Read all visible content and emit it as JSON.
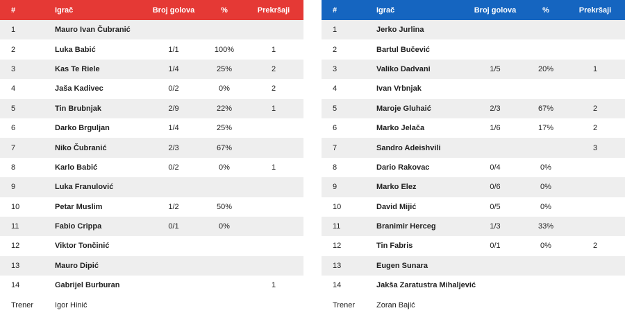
{
  "headers": {
    "num": "#",
    "player": "Igrač",
    "goals": "Broj golova",
    "pct": "%",
    "fouls": "Prekršaji"
  },
  "colors": {
    "home_header": "#e53935",
    "away_header": "#1565c0",
    "row_shade": "#eeeeee"
  },
  "home": {
    "players": [
      {
        "num": "1",
        "name": "Mauro Ivan Čubranić",
        "goals": "",
        "pct": "",
        "fouls": ""
      },
      {
        "num": "2",
        "name": "Luka Babić",
        "goals": "1/1",
        "pct": "100%",
        "fouls": "1"
      },
      {
        "num": "3",
        "name": "Kas Te Riele",
        "goals": "1/4",
        "pct": "25%",
        "fouls": "2"
      },
      {
        "num": "4",
        "name": "Jaša Kadivec",
        "goals": "0/2",
        "pct": "0%",
        "fouls": "2"
      },
      {
        "num": "5",
        "name": "Tin Brubnjak",
        "goals": "2/9",
        "pct": "22%",
        "fouls": "1"
      },
      {
        "num": "6",
        "name": "Darko Brguljan",
        "goals": "1/4",
        "pct": "25%",
        "fouls": ""
      },
      {
        "num": "7",
        "name": "Niko Čubranić",
        "goals": "2/3",
        "pct": "67%",
        "fouls": ""
      },
      {
        "num": "8",
        "name": "Karlo Babić",
        "goals": "0/2",
        "pct": "0%",
        "fouls": "1"
      },
      {
        "num": "9",
        "name": "Luka Franulović",
        "goals": "",
        "pct": "",
        "fouls": ""
      },
      {
        "num": "10",
        "name": "Petar Muslim",
        "goals": "1/2",
        "pct": "50%",
        "fouls": ""
      },
      {
        "num": "11",
        "name": "Fabio Crippa",
        "goals": "0/1",
        "pct": "0%",
        "fouls": ""
      },
      {
        "num": "12",
        "name": "Viktor Tončinić",
        "goals": "",
        "pct": "",
        "fouls": ""
      },
      {
        "num": "13",
        "name": "Mauro Dipić",
        "goals": "",
        "pct": "",
        "fouls": ""
      },
      {
        "num": "14",
        "name": "Gabrijel Burburan",
        "goals": "",
        "pct": "",
        "fouls": "1"
      }
    ],
    "coach_label": "Trener",
    "coach": "Igor Hinić"
  },
  "away": {
    "players": [
      {
        "num": "1",
        "name": "Jerko Jurlina",
        "goals": "",
        "pct": "",
        "fouls": ""
      },
      {
        "num": "2",
        "name": "Bartul Bučević",
        "goals": "",
        "pct": "",
        "fouls": ""
      },
      {
        "num": "3",
        "name": "Valiko Dadvani",
        "goals": "1/5",
        "pct": "20%",
        "fouls": "1"
      },
      {
        "num": "4",
        "name": "Ivan Vrbnjak",
        "goals": "",
        "pct": "",
        "fouls": ""
      },
      {
        "num": "5",
        "name": "Maroje Gluhaić",
        "goals": "2/3",
        "pct": "67%",
        "fouls": "2"
      },
      {
        "num": "6",
        "name": "Marko Jelača",
        "goals": "1/6",
        "pct": "17%",
        "fouls": "2"
      },
      {
        "num": "7",
        "name": "Sandro Adeishvili",
        "goals": "",
        "pct": "",
        "fouls": "3"
      },
      {
        "num": "8",
        "name": "Dario Rakovac",
        "goals": "0/4",
        "pct": "0%",
        "fouls": ""
      },
      {
        "num": "9",
        "name": "Marko Elez",
        "goals": "0/6",
        "pct": "0%",
        "fouls": ""
      },
      {
        "num": "10",
        "name": "David Mijić",
        "goals": "0/5",
        "pct": "0%",
        "fouls": ""
      },
      {
        "num": "11",
        "name": "Branimir Herceg",
        "goals": "1/3",
        "pct": "33%",
        "fouls": ""
      },
      {
        "num": "12",
        "name": "Tin Fabris",
        "goals": "0/1",
        "pct": "0%",
        "fouls": "2"
      },
      {
        "num": "13",
        "name": "Eugen Sunara",
        "goals": "",
        "pct": "",
        "fouls": ""
      },
      {
        "num": "14",
        "name": "Jakša Zaratustra Mihaljević",
        "goals": "",
        "pct": "",
        "fouls": ""
      }
    ],
    "coach_label": "Trener",
    "coach": "Zoran Bajić"
  }
}
